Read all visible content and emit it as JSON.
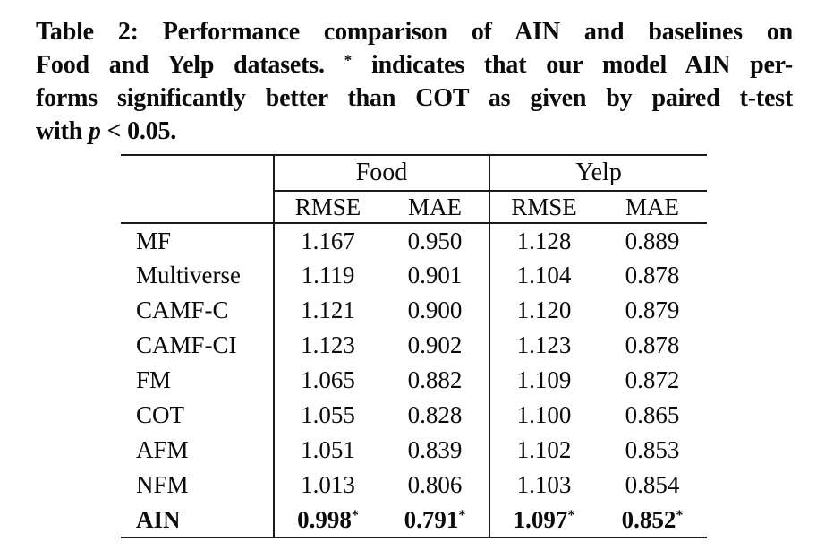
{
  "page": {
    "background": "#ffffff",
    "text_color": "#0b0b0b",
    "rule_color": "#1a1a1a"
  },
  "caption": {
    "lines": [
      [
        {
          "t": "Table 2: Performance comparison of AIN and baselines on"
        }
      ],
      [
        {
          "t": "Food and Yelp datasets. "
        },
        {
          "t": "*",
          "style": "sup"
        },
        {
          "t": " indicates that our model AIN per-"
        }
      ],
      [
        {
          "t": "forms significantly better than COT as given by paired t-test"
        }
      ],
      [
        {
          "t": "with "
        },
        {
          "t": "p",
          "style": "italic"
        },
        {
          "t": " < 0.05."
        }
      ]
    ]
  },
  "table": {
    "group_headers": [
      {
        "label": "Food"
      },
      {
        "label": "Yelp"
      }
    ],
    "metric_headers": [
      "RMSE",
      "MAE",
      "RMSE",
      "MAE"
    ],
    "rows": [
      {
        "label": "MF",
        "values": [
          "1.167",
          "0.950",
          "1.128",
          "0.889"
        ],
        "bold": false
      },
      {
        "label": "Multiverse",
        "values": [
          "1.119",
          "0.901",
          "1.104",
          "0.878"
        ],
        "bold": false
      },
      {
        "label": "CAMF-C",
        "values": [
          "1.121",
          "0.900",
          "1.120",
          "0.879"
        ],
        "bold": false
      },
      {
        "label": "CAMF-CI",
        "values": [
          "1.123",
          "0.902",
          "1.123",
          "0.878"
        ],
        "bold": false
      },
      {
        "label": "FM",
        "values": [
          "1.065",
          "0.882",
          "1.109",
          "0.872"
        ],
        "bold": false
      },
      {
        "label": "COT",
        "values": [
          "1.055",
          "0.828",
          "1.100",
          "0.865"
        ],
        "bold": false
      },
      {
        "label": "AFM",
        "values": [
          "1.051",
          "0.839",
          "1.102",
          "0.853"
        ],
        "bold": false
      },
      {
        "label": "NFM",
        "values": [
          "1.013",
          "0.806",
          "1.103",
          "0.854"
        ],
        "bold": false
      },
      {
        "label": "AIN",
        "values": [
          "0.998*",
          "0.791*",
          "1.097*",
          "0.852*"
        ],
        "bold": true
      }
    ]
  }
}
